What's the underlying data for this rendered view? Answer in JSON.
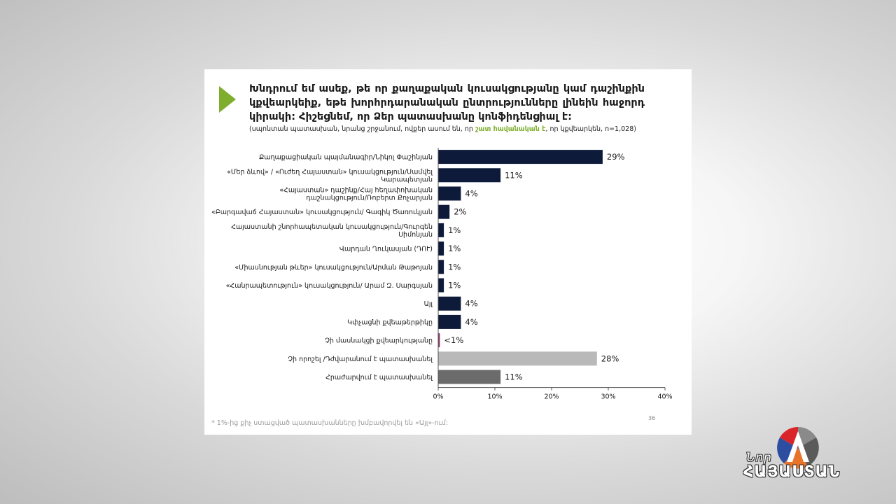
{
  "slide": {
    "title": "Խնդրում եմ ասեք, թե որ քաղաքական կուսակցությանը կամ դաշինքին կքվեարկեիք, եթե խորհրդարանական ընտրությունները լինեին հաջորդ կիրակի: Հիշեցնեմ, որ Ձեր պատասխանը կոնֆիդենցիալ է:",
    "subtitle_before": "(սպոնտան պատասխան, նրանց շրջանում, ովքեր ասում են, որ ",
    "subtitle_highlight": "շատ հավանական է",
    "subtitle_after": ", որ կքվեարկեն, n=1,028)",
    "footnote": "* 1%-ից քիչ ստացված պատասխանները խմբավորվել են «Այլ»-ում:",
    "page_number": "36"
  },
  "colors": {
    "navy": "#0d1a3a",
    "magenta": "#8e3a6e",
    "light_gray": "#b9b9b9",
    "dark_gray": "#6b6b6b",
    "accent_green": "#7fae2f"
  },
  "chart_data": {
    "type": "bar",
    "orientation": "horizontal",
    "categories": [
      "Քաղաքացիական պայմանագիր/Նիկոլ Փաշինյան",
      "«Մեր ձևով» / «Ուժեղ Հայաստան» կուսակցություն/Սամվել Կարապետյան",
      "«Հայաստան» դաշինք/Հայ հեղափոխական դաշնակցություն/Ռոբերտ Քոչարյան",
      "«Բարգավաճ Հայաստան» կուսակցություն/ Գագիկ Ծառուկյան",
      "Հայաստանի շնորհապետական կուսակցություն/Գուրգեն Սիմոնյան",
      "Վարդան Ղուկասյան (ԴՈՒ)",
      "«Միասնության թևեր» կուսակցություն/Արման Թաթոյան",
      "«Հանրապետություն» կուսակցություն/ Արամ Զ. Սարգսյան",
      "Այլ",
      "Կփչացնի քվեաթերթիկը",
      "Չի մասնակցի քվեարկությանը",
      "Չի որոշել /Դժվարանում է պատասխանել",
      "Հրաժարվում է պատասխանել"
    ],
    "values": [
      29,
      11,
      4,
      2,
      1,
      1,
      1,
      1,
      4,
      4,
      0.3,
      28,
      11
    ],
    "value_labels": [
      "29%",
      "11%",
      "4%",
      "2%",
      "1%",
      "1%",
      "1%",
      "1%",
      "4%",
      "4%",
      "<1%",
      "28%",
      "11%"
    ],
    "bar_colors": [
      "navy",
      "navy",
      "navy",
      "navy",
      "navy",
      "navy",
      "navy",
      "navy",
      "navy",
      "navy",
      "magenta",
      "light_gray",
      "dark_gray"
    ],
    "xlim": [
      0,
      40
    ],
    "xticks": [
      "0%",
      "10%",
      "20%",
      "30%",
      "40%"
    ],
    "grid": false,
    "xlabel": "",
    "ylabel": ""
  },
  "logo": {
    "nor": "Նոր",
    "name": "ՀԱՅԱՍՏԱՆ"
  }
}
